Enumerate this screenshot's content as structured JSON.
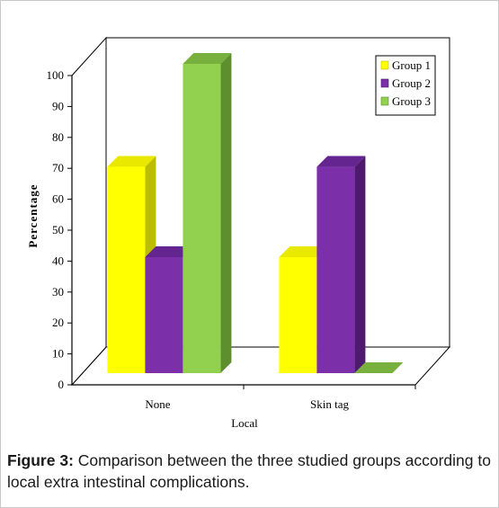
{
  "chart_data": {
    "type": "bar",
    "style": "3d-clustered-column",
    "title": "",
    "categories": [
      "None",
      "Skin tag"
    ],
    "series": [
      {
        "name": "Group 1",
        "values": [
          66.7,
          37.5
        ],
        "color": "#FFFF00",
        "side": "#BDBD00",
        "top": "#E8E800"
      },
      {
        "name": "Group 2",
        "values": [
          37.5,
          66.7
        ],
        "color": "#7B2FA8",
        "side": "#4E1A6E",
        "top": "#642590"
      },
      {
        "name": "Group 3",
        "values": [
          100,
          0
        ],
        "color": "#92D050",
        "side": "#5E8F2E",
        "top": "#77B03D"
      }
    ],
    "xlabel": "Local",
    "ylabel": "Percentage",
    "ylim": [
      0,
      100
    ],
    "yticks": [
      0,
      10,
      20,
      30,
      40,
      50,
      60,
      70,
      80,
      90,
      100
    ],
    "legend": "top-right",
    "grid": false
  },
  "caption": {
    "label": "Figure 3:",
    "text": " Comparison between the three studied groups according to local extra intestinal complications."
  }
}
